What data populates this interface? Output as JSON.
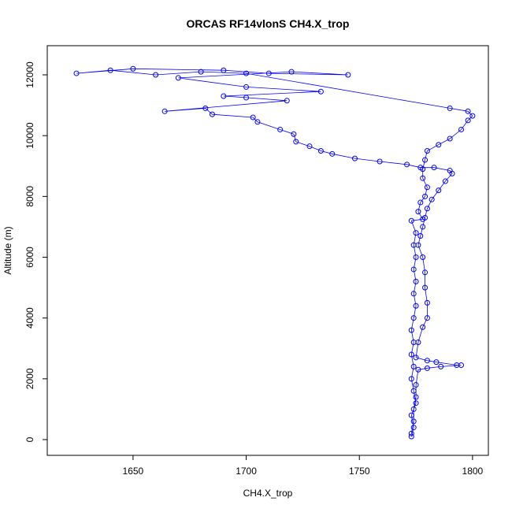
{
  "chart_data": {
    "type": "line",
    "title": "ORCAS RF14vlonS CH4.X_trop",
    "x_label": "CH4.X_trop",
    "y_label": "Altitude (m)",
    "xlim": [
      1612.1,
      1807
    ],
    "ylim": [
      -518,
      12959
    ],
    "xticks": [
      1650,
      1700,
      1750,
      1800
    ],
    "yticks": [
      0,
      2000,
      4000,
      6000,
      8000,
      10000,
      12000
    ],
    "series": [
      {
        "color": "#0000ff",
        "x": [
          1773,
          1774,
          1773,
          1775,
          1774,
          1773,
          1774,
          1773,
          1774,
          1773,
          1774,
          1775,
          1774,
          1775,
          1774,
          1775,
          1774,
          1775,
          1773,
          1778,
          1776,
          1777,
          1779,
          1780,
          1778,
          1778,
          1779,
          1780,
          1785,
          1790,
          1795,
          1798,
          1800,
          1798,
          1790,
          1700,
          1680,
          1660,
          1640,
          1625,
          1650,
          1690,
          1710,
          1745,
          1720,
          1670,
          1700,
          1733,
          1690,
          1700,
          1718,
          1664,
          1682,
          1685,
          1703,
          1705,
          1715,
          1721,
          1722,
          1728,
          1733,
          1738,
          1748,
          1759,
          1771,
          1777,
          1783,
          1790,
          1791,
          1788,
          1785,
          1782,
          1780,
          1779,
          1778,
          1777,
          1776,
          1778,
          1779,
          1779,
          1780,
          1780,
          1778,
          1776,
          1775,
          1780,
          1784,
          1793,
          1795,
          1786,
          1780,
          1776,
          1775,
          1775,
          1774,
          1774,
          1773
        ],
        "values": [
          100,
          400,
          800,
          1200,
          1600,
          2000,
          2400,
          2800,
          3200,
          3600,
          4000,
          4400,
          4800,
          5200,
          5600,
          6000,
          6400,
          6800,
          7200,
          7250,
          7500,
          7800,
          8000,
          8300,
          8600,
          8900,
          9200,
          9500,
          9700,
          9900,
          10200,
          10500,
          10650,
          10800,
          10900,
          12050,
          12100,
          12000,
          12150,
          12050,
          12200,
          12150,
          12050,
          12000,
          12100,
          11900,
          11600,
          11450,
          11300,
          11250,
          11150,
          10800,
          10900,
          10700,
          10600,
          10450,
          10200,
          10050,
          9800,
          9650,
          9500,
          9400,
          9250,
          9150,
          9050,
          8950,
          8950,
          8850,
          8750,
          8500,
          8200,
          7900,
          7600,
          7300,
          7000,
          6700,
          6400,
          6000,
          5500,
          5000,
          4500,
          4000,
          3700,
          3200,
          2700,
          2600,
          2550,
          2450,
          2450,
          2400,
          2350,
          2300,
          1800,
          1400,
          1000,
          600,
          200
        ]
      }
    ]
  }
}
